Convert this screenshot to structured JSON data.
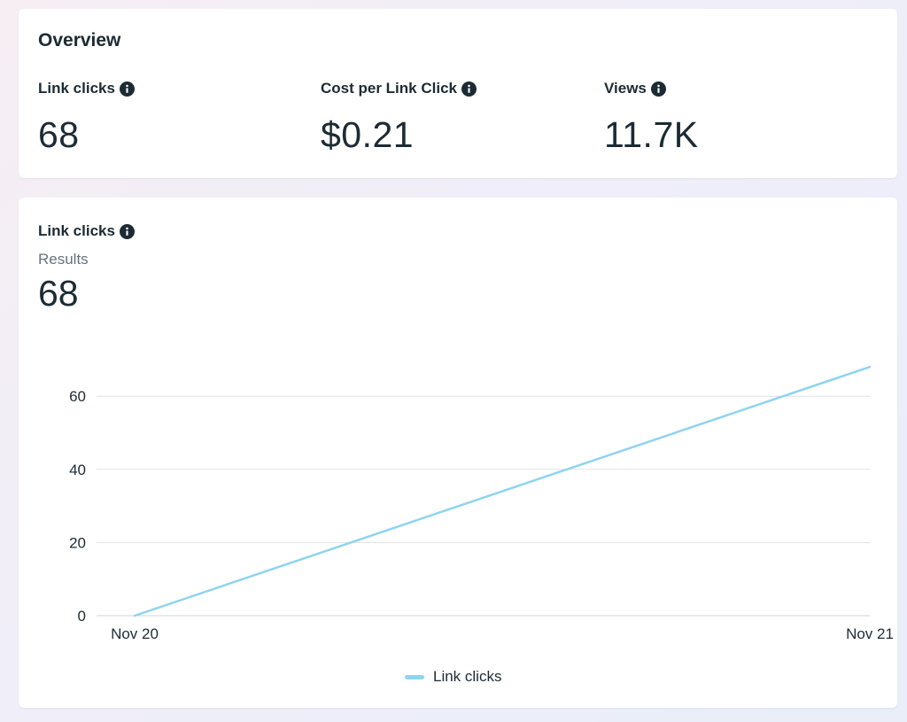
{
  "overview": {
    "title": "Overview",
    "metrics": [
      {
        "label": "Link clicks",
        "value": "68"
      },
      {
        "label": "Cost per Link Click",
        "value": "$0.21"
      },
      {
        "label": "Views",
        "value": "11.7K"
      }
    ]
  },
  "chart_card": {
    "title": "Link clicks",
    "subtitle": "Results",
    "total": "68"
  },
  "colors": {
    "line": "#8fd3f0",
    "grid": "#dfe3e7",
    "text": "#1c2b33"
  },
  "chart_data": {
    "type": "line",
    "categories": [
      "Nov 20",
      "Nov 21"
    ],
    "series": [
      {
        "name": "Link clicks",
        "values": [
          0,
          68
        ]
      }
    ],
    "y_ticks": [
      "0",
      "20",
      "40",
      "60"
    ],
    "ylim": [
      0,
      68
    ],
    "grid": true,
    "legend": "bottom-center"
  }
}
